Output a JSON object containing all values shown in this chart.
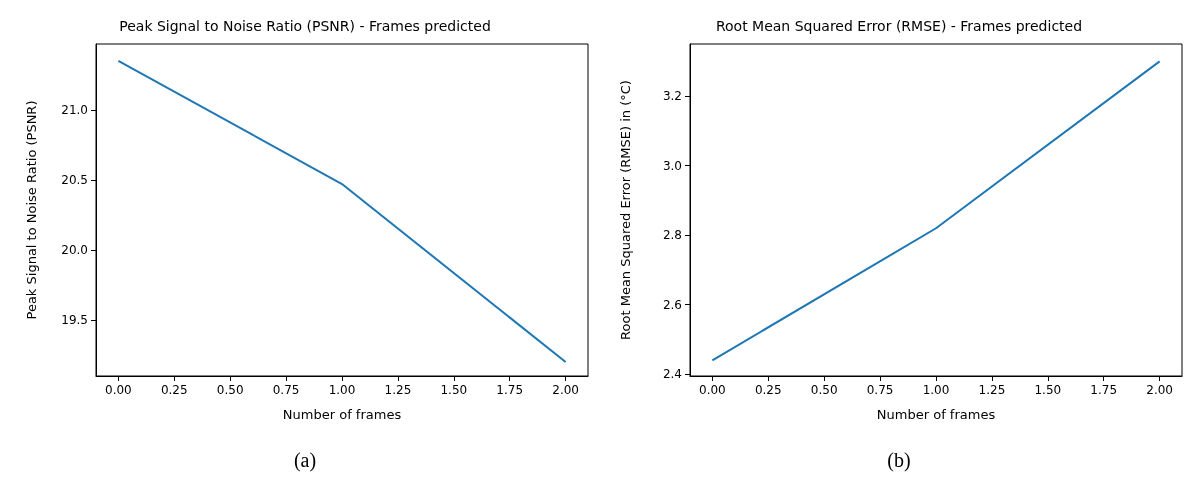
{
  "chart_data": [
    {
      "type": "line",
      "title": "Peak Signal to Noise Ratio (PSNR) - Frames predicted",
      "xlabel": "Number of frames",
      "ylabel": "Peak Signal to Noise Ratio (PSNR)",
      "x": [
        0,
        1,
        2
      ],
      "series": [
        {
          "color": "#1f77b4",
          "values": [
            21.35,
            20.47,
            19.2
          ]
        }
      ],
      "xlim": [
        -0.1,
        2.1
      ],
      "xticks": [
        {
          "value": 0,
          "label": "0.00"
        },
        {
          "value": 0.25,
          "label": "0.25"
        },
        {
          "value": 0.5,
          "label": "0.50"
        },
        {
          "value": 0.75,
          "label": "0.75"
        },
        {
          "value": 1,
          "label": "1.00"
        },
        {
          "value": 1.25,
          "label": "1.25"
        },
        {
          "value": 1.5,
          "label": "1.50"
        },
        {
          "value": 1.75,
          "label": "1.75"
        },
        {
          "value": 2,
          "label": "2.00"
        }
      ],
      "ylim": [
        19.1,
        21.47
      ],
      "yticks": [
        {
          "value": 19.5,
          "label": "19.5"
        },
        {
          "value": 20,
          "label": "20.0"
        },
        {
          "value": 20.5,
          "label": "20.5"
        },
        {
          "value": 21,
          "label": "21.0"
        }
      ],
      "annotations": [
        "(a)"
      ]
    },
    {
      "type": "line",
      "title": "Root Mean Squared Error (RMSE) - Frames predicted",
      "xlabel": "Number of frames",
      "ylabel": "Root Mean Squared Error (RMSE) in (°C)",
      "x": [
        0,
        1,
        2
      ],
      "series": [
        {
          "color": "#1f77b4",
          "values": [
            2.44,
            2.82,
            3.3
          ]
        }
      ],
      "xlim": [
        -0.1,
        2.1
      ],
      "xticks": [
        {
          "value": 0,
          "label": "0.00"
        },
        {
          "value": 0.25,
          "label": "0.25"
        },
        {
          "value": 0.5,
          "label": "0.50"
        },
        {
          "value": 0.75,
          "label": "0.75"
        },
        {
          "value": 1,
          "label": "1.00"
        },
        {
          "value": 1.25,
          "label": "1.25"
        },
        {
          "value": 1.5,
          "label": "1.50"
        },
        {
          "value": 1.75,
          "label": "1.75"
        },
        {
          "value": 2,
          "label": "2.00"
        }
      ],
      "ylim": [
        2.395,
        3.35
      ],
      "yticks": [
        {
          "value": 2.4,
          "label": "2.4"
        },
        {
          "value": 2.6,
          "label": "2.6"
        },
        {
          "value": 2.8,
          "label": "2.8"
        },
        {
          "value": 3.0,
          "label": "3.0"
        },
        {
          "value": 3.2,
          "label": "3.2"
        }
      ],
      "annotations": [
        "(b)"
      ]
    }
  ]
}
